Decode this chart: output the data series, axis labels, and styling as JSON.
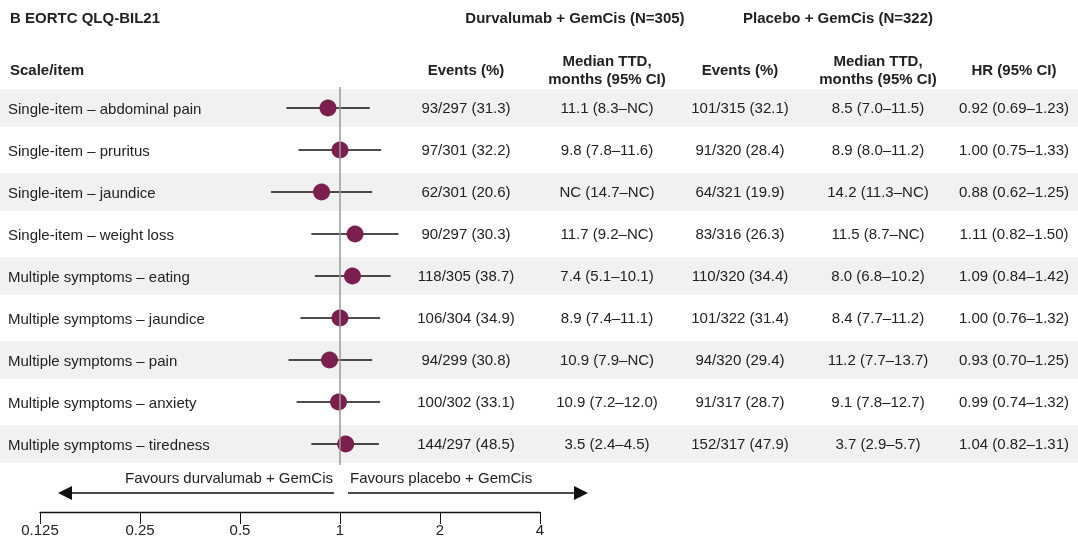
{
  "chart_data": {
    "type": "scatter",
    "title": "B EORTC QLQ-BIL21",
    "ylabel": "Scale/item",
    "categories": [
      "Single-item – abdominal pain",
      "Single-item – pruritus",
      "Single-item – jaundice",
      "Single-item – weight loss",
      "Multiple symptoms – eating",
      "Multiple symptoms – jaundice",
      "Multiple symptoms – pain",
      "Multiple symptoms – anxiety",
      "Multiple symptoms – tiredness"
    ],
    "values": [
      0.92,
      1.0,
      0.88,
      1.11,
      1.09,
      1.0,
      0.93,
      0.99,
      1.04
    ],
    "errors": [
      [
        0.69,
        1.23
      ],
      [
        0.75,
        1.33
      ],
      [
        0.62,
        1.25
      ],
      [
        0.82,
        1.5
      ],
      [
        0.84,
        1.42
      ],
      [
        0.76,
        1.32
      ],
      [
        0.7,
        1.25
      ],
      [
        0.74,
        1.32
      ],
      [
        0.82,
        1.31
      ]
    ],
    "value_labels": [
      "0.92 (0.69–1.23)",
      "1.00 (0.75–1.33)",
      "0.88 (0.62–1.25)",
      "1.11 (0.82–1.50)",
      "1.09 (0.84–1.42)",
      "1.00 (0.76–1.32)",
      "0.93 (0.70–1.25)",
      "0.99 (0.74–1.32)",
      "1.04 (0.82–1.31)"
    ],
    "color": "#7b1f4e",
    "marker": "circle",
    "orientation": "horizontal",
    "log": "x",
    "grid": false,
    "xlim": [
      0.125,
      4
    ],
    "xticks": [
      0.125,
      0.25,
      0.5,
      1,
      2,
      4
    ],
    "ref_lines": [
      {
        "axis": "x",
        "value": 1,
        "color": "#999999"
      }
    ],
    "annotations": [
      "Durvalumab + GemCis (N=305)",
      "Placebo + GemCis (N=322)",
      "Events (%)",
      "Median TTD, months (95% CI)",
      "Events (%)",
      "Median TTD, months (95% CI)",
      "HR (95% CI)",
      "93/297 (31.3)",
      "11.1 (8.3–NC)",
      "101/315 (32.1)",
      "8.5 (7.0–11.5)",
      "97/301 (32.2)",
      "9.8 (7.8–11.6)",
      "91/320 (28.4)",
      "8.9 (8.0–11.2)",
      "62/301 (20.6)",
      "NC (14.7–NC)",
      "64/321 (19.9)",
      "14.2 (11.3–NC)",
      "90/297 (30.3)",
      "11.7 (9.2–NC)",
      "83/316 (26.3)",
      "11.5 (8.7–NC)",
      "118/305 (38.7)",
      "7.4 (5.1–10.1)",
      "110/320 (34.4)",
      "8.0 (6.8–10.2)",
      "106/304 (34.9)",
      "8.9 (7.4–11.1)",
      "101/322 (31.4)",
      "8.4 (7.7–11.2)",
      "94/299 (30.8)",
      "10.9 (7.9–NC)",
      "94/320 (29.4)",
      "11.2 (7.7–13.7)",
      "100/302 (33.1)",
      "10.9 (7.2–12.0)",
      "91/317 (28.7)",
      "9.1 (7.8–12.7)",
      "144/297 (48.5)",
      "3.5 (2.4–4.5)",
      "152/317 (47.9)",
      "3.7 (2.9–5.7)",
      "Favours durvalumab + GemCis",
      "Favours placebo + GemCis"
    ]
  }
}
